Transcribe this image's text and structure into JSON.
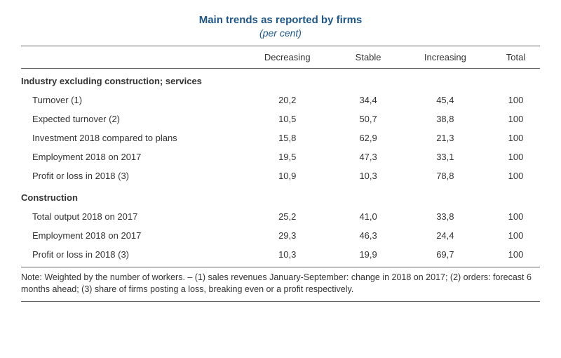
{
  "title": "Main trends as reported by firms",
  "subtitle": "(per cent)",
  "columns": [
    "",
    "Decreasing",
    "Stable",
    "Increasing",
    "Total"
  ],
  "sections": [
    {
      "heading": "Industry excluding construction; services",
      "rows": [
        {
          "label": "Turnover (1)",
          "cells": [
            "20,2",
            "34,4",
            "45,4",
            "100"
          ]
        },
        {
          "label": "Expected turnover (2)",
          "cells": [
            "10,5",
            "50,7",
            "38,8",
            "100"
          ]
        },
        {
          "label": "Investment 2018 compared to plans",
          "cells": [
            "15,8",
            "62,9",
            "21,3",
            "100"
          ]
        },
        {
          "label": "Employment 2018 on 2017",
          "cells": [
            "19,5",
            "47,3",
            "33,1",
            "100"
          ]
        },
        {
          "label": "Profit or loss in 2018 (3)",
          "cells": [
            "10,9",
            "10,3",
            "78,8",
            "100"
          ]
        }
      ]
    },
    {
      "heading": "Construction",
      "rows": [
        {
          "label": "Total output 2018 on 2017",
          "cells": [
            "25,2",
            "41,0",
            "33,8",
            "100"
          ]
        },
        {
          "label": "Employment 2018 on 2017",
          "cells": [
            "29,3",
            "46,3",
            "24,4",
            "100"
          ]
        },
        {
          "label": "Profit or loss in 2018 (3)",
          "cells": [
            "10,3",
            "19,9",
            "69,7",
            "100"
          ]
        }
      ]
    }
  ],
  "note": "Note: Weighted by the number of workers. – (1) sales revenues January-September: change in 2018 on 2017; (2) orders: forecast 6 months ahead; (3) share of firms posting a loss, breaking even or a profit respectively."
}
